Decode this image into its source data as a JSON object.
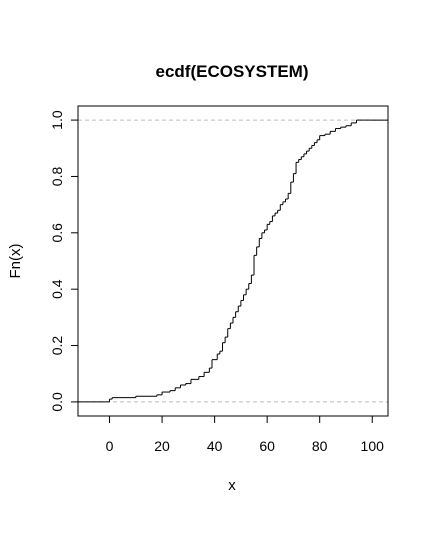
{
  "chart_data": {
    "type": "line",
    "step": true,
    "title": "ecdf(ECOSYSTEM)",
    "xlabel": "x",
    "ylabel": "Fn(x)",
    "xlim": [
      -12,
      106
    ],
    "ylim": [
      -0.05,
      1.05
    ],
    "xticks": [
      0,
      20,
      40,
      60,
      80,
      100
    ],
    "yticks": [
      0.0,
      0.2,
      0.4,
      0.6,
      0.8,
      1.0
    ],
    "xtick_labels": [
      "0",
      "20",
      "40",
      "60",
      "80",
      "100"
    ],
    "ytick_labels": [
      "0.0",
      "0.2",
      "0.4",
      "0.6",
      "0.8",
      "1.0"
    ],
    "reference_lines_y": [
      0,
      1
    ],
    "grid": false,
    "colors": {
      "line": "#000000",
      "reference": "#bebebe"
    },
    "series": [
      {
        "x": [
          0,
          1,
          10,
          18,
          20,
          23,
          25,
          27,
          29,
          31,
          34,
          36,
          38,
          39,
          41,
          42,
          43,
          44,
          45,
          46,
          47,
          48,
          49,
          50,
          51,
          52,
          53,
          54,
          55,
          56,
          57,
          58,
          59,
          60,
          61,
          62,
          63,
          64,
          65,
          66,
          67,
          68,
          69,
          70,
          71,
          72,
          73,
          74,
          75,
          76,
          77,
          78,
          79,
          80,
          82,
          84,
          86,
          88,
          90,
          92,
          94,
          97,
          99
        ],
        "y": [
          0.01,
          0.015,
          0.02,
          0.025,
          0.035,
          0.04,
          0.05,
          0.06,
          0.065,
          0.08,
          0.09,
          0.105,
          0.12,
          0.15,
          0.17,
          0.18,
          0.21,
          0.23,
          0.26,
          0.28,
          0.3,
          0.32,
          0.34,
          0.36,
          0.38,
          0.4,
          0.42,
          0.45,
          0.52,
          0.55,
          0.58,
          0.6,
          0.61,
          0.63,
          0.64,
          0.66,
          0.67,
          0.68,
          0.7,
          0.71,
          0.72,
          0.74,
          0.78,
          0.81,
          0.85,
          0.86,
          0.87,
          0.88,
          0.89,
          0.9,
          0.91,
          0.92,
          0.93,
          0.945,
          0.95,
          0.96,
          0.97,
          0.975,
          0.98,
          0.99,
          1.0,
          1.0,
          1.0
        ]
      }
    ]
  }
}
